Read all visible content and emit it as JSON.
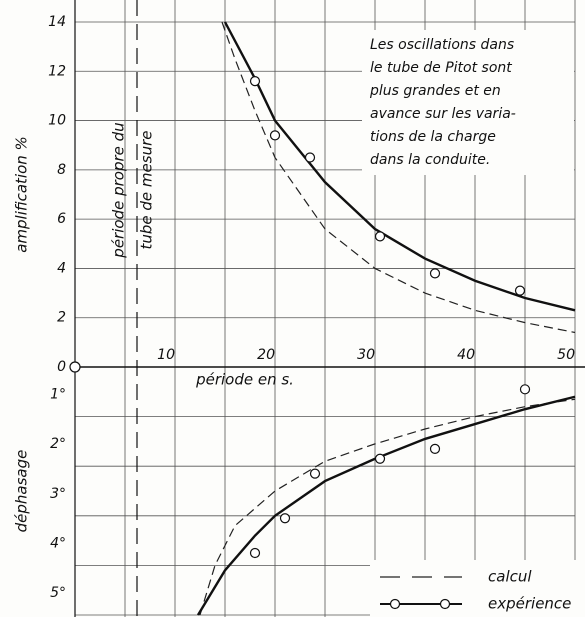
{
  "chart_data": [
    {
      "type": "line",
      "ylabel": "amplification %",
      "xlabel": "période en s.",
      "annotation": [
        "Les oscillations dans",
        "le tube de Pitot sont",
        "plus grandes et en",
        "avance sur les varia-",
        "tions de la charge",
        "dans la conduite."
      ],
      "vline": {
        "x": 6.2,
        "label": [
          "période propre du",
          "tube de mesure"
        ]
      },
      "xlim": [
        0,
        50
      ],
      "xticks": [
        10,
        20,
        30,
        40,
        50
      ],
      "xminor": [
        5,
        15,
        25,
        35,
        45
      ],
      "ylim": [
        0,
        14
      ],
      "yticks": [
        0,
        2,
        4,
        6,
        8,
        10,
        12,
        14
      ],
      "grid": true,
      "series": [
        {
          "name": "calcul",
          "color": "#222222",
          "dashed": true,
          "x": [
            14.7,
            16,
            18,
            20,
            25,
            30,
            35,
            40,
            45,
            50
          ],
          "values": [
            14,
            12.5,
            10.4,
            8.5,
            5.6,
            4.0,
            3.0,
            2.3,
            1.8,
            1.4
          ]
        },
        {
          "name": "expérience",
          "color": "#111111",
          "dashed": false,
          "x": [
            15,
            18,
            20,
            25,
            30,
            35,
            40,
            45,
            50
          ],
          "values": [
            14,
            11.7,
            10.0,
            7.5,
            5.6,
            4.4,
            3.5,
            2.8,
            2.3
          ],
          "points_x": [
            18,
            20,
            23.5,
            30.5,
            36,
            44.5
          ],
          "points": [
            11.6,
            9.4,
            8.5,
            5.3,
            3.8,
            3.1
          ]
        }
      ]
    },
    {
      "type": "line",
      "ylabel": "déphasage",
      "xlim": [
        0,
        50
      ],
      "ylim": [
        0,
        5
      ],
      "y_inverted": true,
      "yticks": [
        {
          "value": 1,
          "label": "1°"
        },
        {
          "value": 2,
          "label": "2°"
        },
        {
          "value": 3,
          "label": "3°"
        },
        {
          "value": 4,
          "label": "4°"
        },
        {
          "value": 5,
          "label": "5°"
        }
      ],
      "grid": true,
      "series": [
        {
          "name": "calcul",
          "color": "#222222",
          "dashed": true,
          "x": [
            12.5,
            14,
            16,
            20,
            25,
            30,
            35,
            40,
            45,
            50
          ],
          "values": [
            5,
            4,
            3.2,
            2.5,
            1.9,
            1.55,
            1.25,
            1.0,
            0.8,
            0.65
          ]
        },
        {
          "name": "expérience",
          "color": "#111111",
          "dashed": false,
          "x": [
            12.3,
            15,
            18,
            20,
            25,
            30,
            35,
            40,
            45,
            50
          ],
          "values": [
            5,
            4.1,
            3.4,
            3.0,
            2.3,
            1.85,
            1.45,
            1.15,
            0.85,
            0.6
          ],
          "points_x": [
            18,
            21,
            24,
            30.5,
            36,
            45
          ],
          "points": [
            3.75,
            3.05,
            2.15,
            1.85,
            1.65,
            0.45
          ]
        }
      ]
    }
  ]
}
